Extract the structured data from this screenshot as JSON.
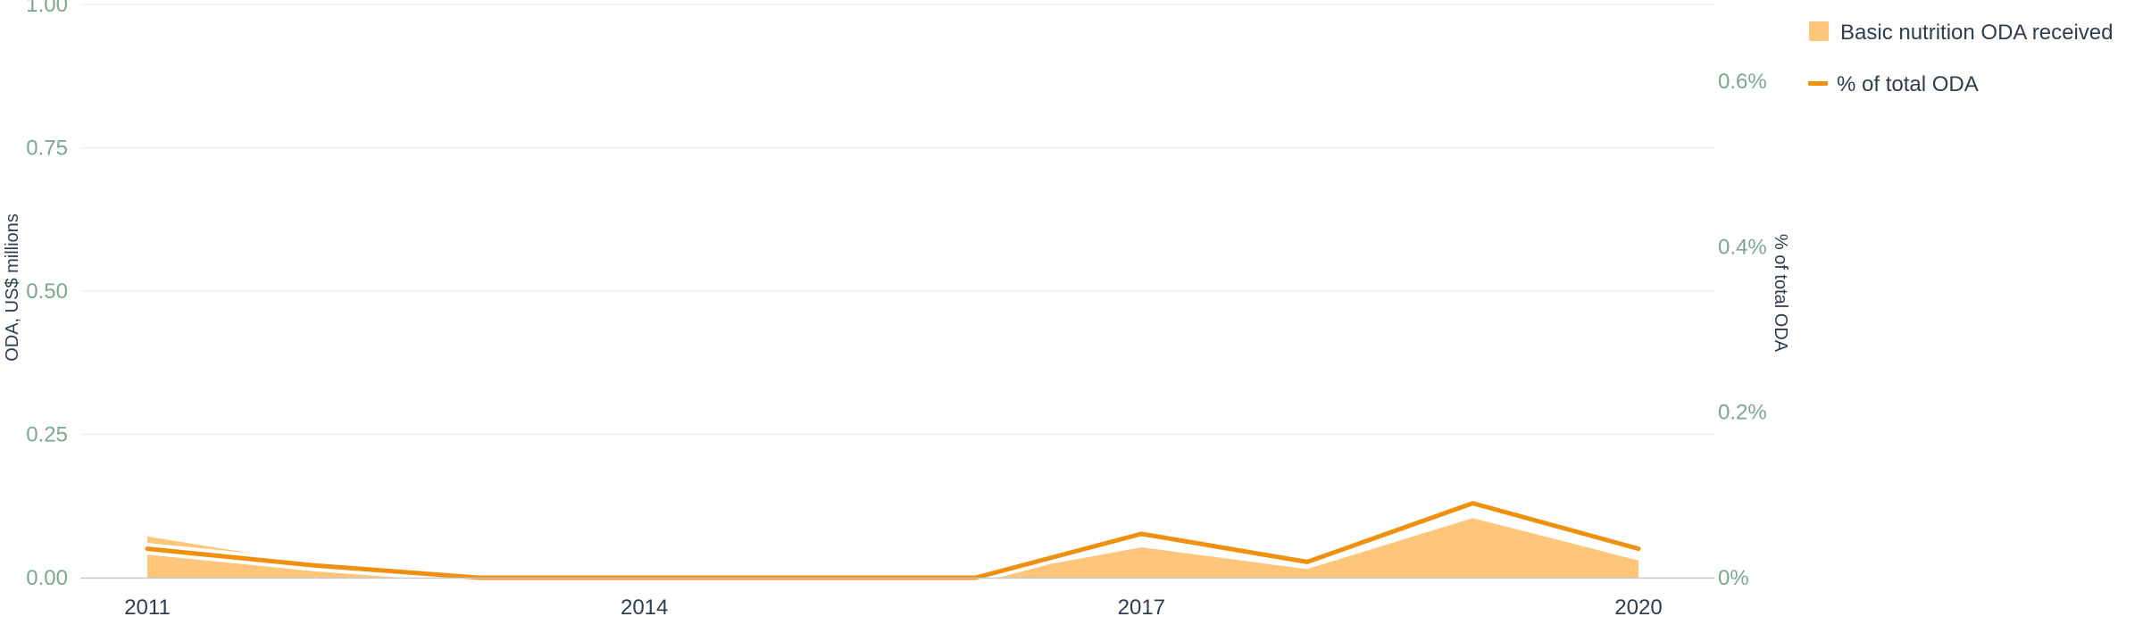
{
  "chart_data": {
    "type": "area",
    "x": [
      2011,
      2012,
      2013,
      2014,
      2015,
      2016,
      2017,
      2018,
      2019,
      2020
    ],
    "x_ticks": [
      "2011",
      "2014",
      "2017",
      "2020"
    ],
    "series": [
      {
        "name": "Basic nutrition ODA received",
        "type": "area",
        "axis": "left",
        "color": "#fdc67b",
        "values": [
          0.072,
          0.025,
          0.0,
          0.0,
          0.0,
          0.0,
          0.053,
          0.015,
          0.104,
          0.03
        ]
      },
      {
        "name": "% of total ODA",
        "type": "line",
        "axis": "right",
        "color": "#f0900f",
        "values": [
          0.035,
          0.015,
          0.0,
          0.0,
          0.0,
          0.0,
          0.053,
          0.019,
          0.09,
          0.035
        ]
      }
    ],
    "y_left": {
      "label": "ODA, US$ millions",
      "ylim": [
        0,
        1
      ],
      "ticks": [
        "0.00",
        "0.25",
        "0.50",
        "0.75",
        "1.00"
      ]
    },
    "y_right": {
      "label": "% of total ODA",
      "ylim": [
        0,
        0.6
      ],
      "ticks": [
        "0%",
        "0.2%",
        "0.4%",
        "0.6%"
      ]
    },
    "grid": true,
    "legend_position": "top-right",
    "title": ""
  },
  "legend": {
    "area_label": "Basic nutrition ODA received",
    "line_label": "% of total ODA"
  },
  "axes": {
    "left_title": "ODA, US$ millions",
    "right_title": "% of total ODA"
  },
  "colors": {
    "area": "#fdc67b",
    "line": "#f0900f",
    "grid": "#efefef",
    "axis_tick_text": "#7ea88d",
    "text": "#2d3e50"
  }
}
